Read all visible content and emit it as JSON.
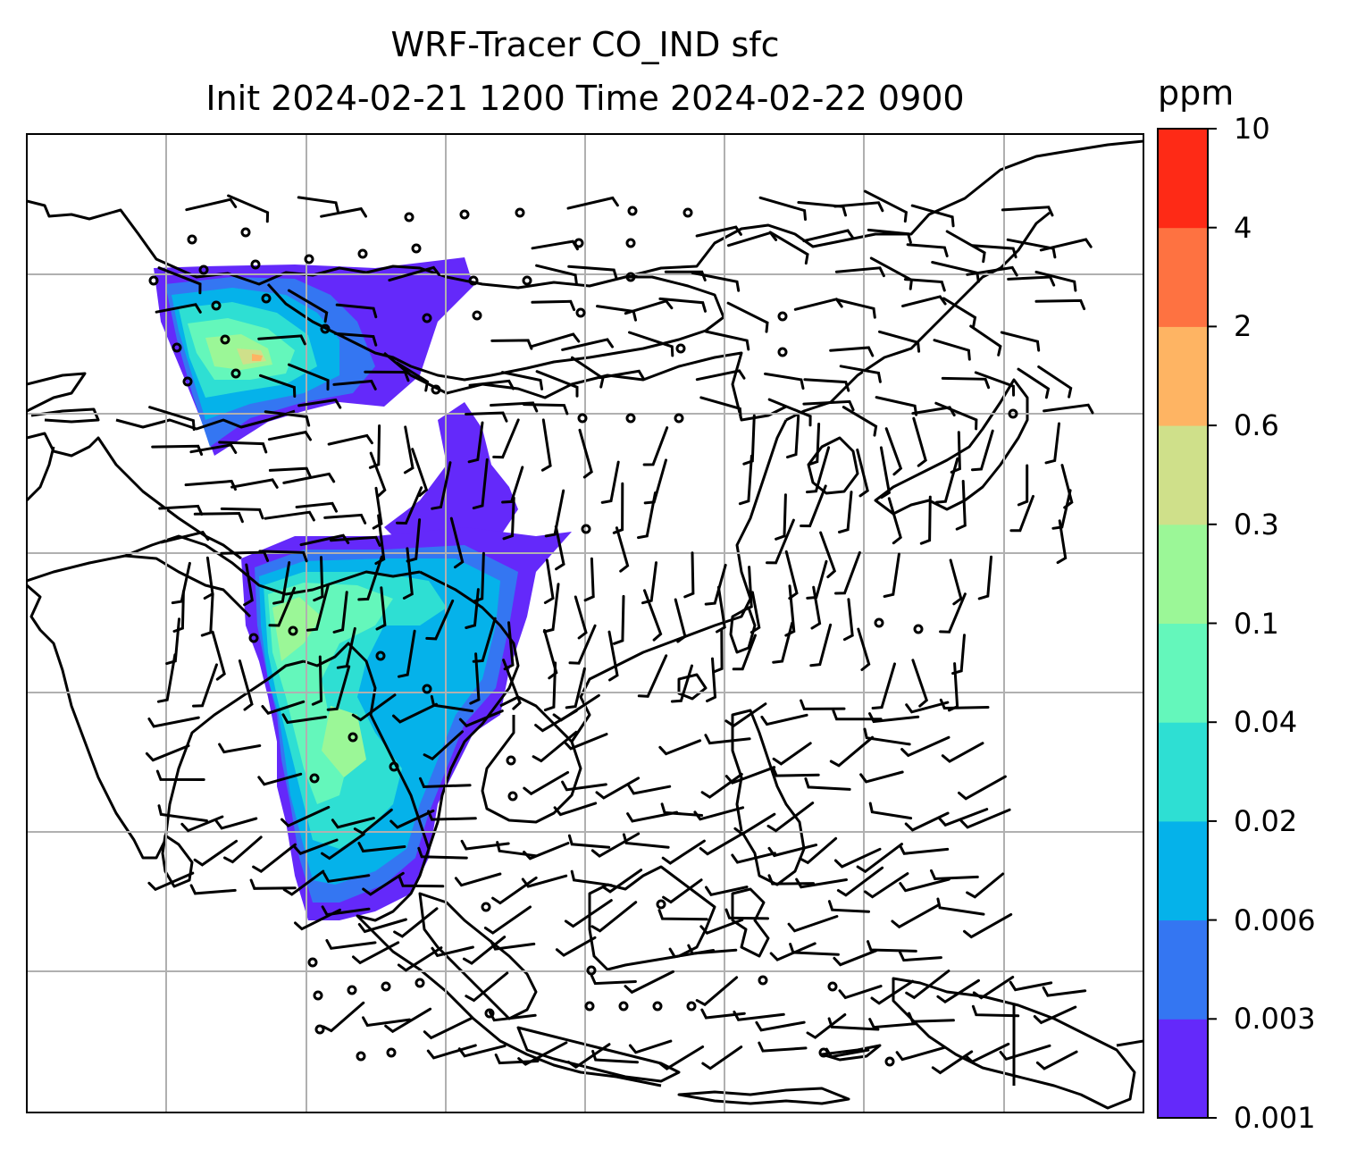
{
  "title": {
    "line1": "WRF-Tracer CO_IND sfc",
    "line2": "Init 2024-02-21 1200 Time 2024-02-22 0900"
  },
  "colorbar": {
    "units": "ppm",
    "levels": [
      "0.001",
      "0.003",
      "0.006",
      "0.02",
      "0.04",
      "0.1",
      "0.3",
      "0.6",
      "2",
      "4",
      "10"
    ],
    "colors": [
      "#6429fa",
      "#3476f2",
      "#05b2ea",
      "#2edfd3",
      "#64f7bb",
      "#9bf797",
      "#cfe08a",
      "#feb463",
      "#fe7241",
      "#fe2a16"
    ]
  },
  "map": {
    "background": "#ffffff",
    "coastline_color": "#000000",
    "gridline_color": "#b0b0b0",
    "wind_barb_color": "#000000"
  }
}
